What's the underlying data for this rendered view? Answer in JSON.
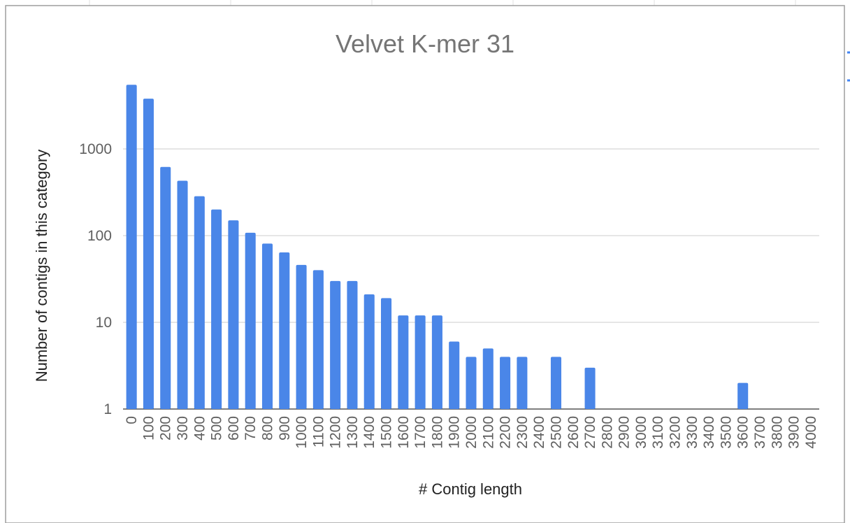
{
  "chart_data": {
    "type": "bar",
    "title": "Velvet K-mer 31",
    "xlabel": "# Contig length",
    "ylabel": "Number of contigs in this category",
    "y_scale": "log",
    "ylim": [
      1,
      7000
    ],
    "y_ticks": [
      {
        "value": 1,
        "label": "1"
      },
      {
        "value": 10,
        "label": "10"
      },
      {
        "value": 100,
        "label": "100"
      },
      {
        "value": 1000,
        "label": "1000"
      }
    ],
    "grid": true,
    "legend": "none",
    "bar_color": "#4a86e8",
    "grid_color": "#cccccc",
    "categories": [
      "0",
      "100",
      "200",
      "300",
      "400",
      "500",
      "600",
      "700",
      "800",
      "900",
      "1000",
      "1100",
      "1200",
      "1300",
      "1400",
      "1500",
      "1600",
      "1700",
      "1800",
      "1900",
      "2000",
      "2100",
      "2200",
      "2300",
      "2400",
      "2500",
      "2600",
      "2700",
      "2800",
      "2900",
      "3000",
      "3100",
      "3200",
      "3300",
      "3400",
      "3500",
      "3600",
      "3700",
      "3800",
      "3900",
      "4000"
    ],
    "values": [
      5500,
      3800,
      620,
      430,
      285,
      200,
      150,
      108,
      81,
      64,
      46,
      40,
      30,
      30,
      21,
      19,
      12,
      12,
      12,
      6,
      4,
      5,
      4,
      4,
      0,
      4,
      0,
      3,
      0,
      0,
      0,
      0,
      0,
      0,
      0,
      0,
      2,
      0,
      0,
      0,
      0
    ]
  }
}
